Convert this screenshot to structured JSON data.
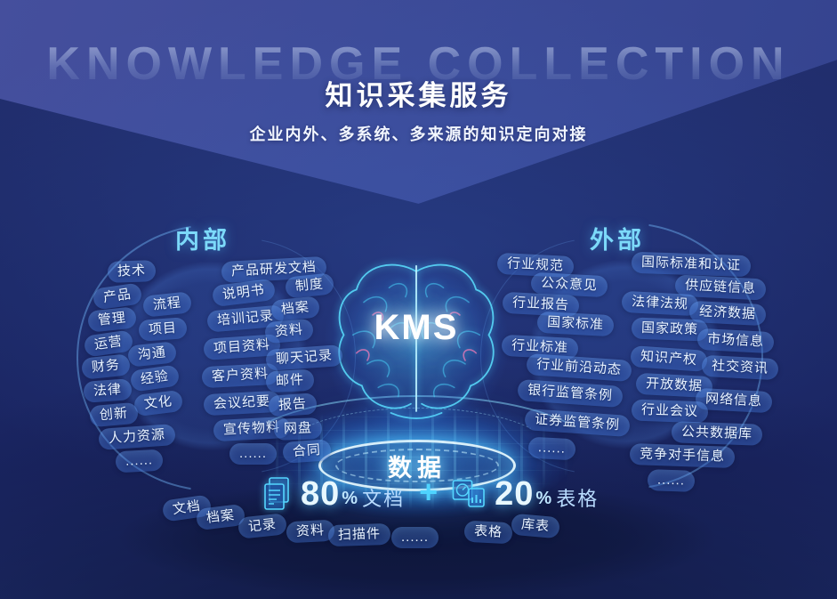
{
  "watermark": "KNOWLEDGE COLLECTION",
  "header": {
    "title": "知识采集服务",
    "subtitle": "企业内外、多系统、多来源的知识定向对接"
  },
  "center": {
    "kms_label": "KMS",
    "data_label": "数据"
  },
  "internal": {
    "label": "内部",
    "col_a": [
      "技术",
      "产品",
      "流程",
      "管理",
      "项目",
      "运营",
      "沟通",
      "财务",
      "经验",
      "法律",
      "文化",
      "创新",
      "人力资源",
      "......"
    ],
    "col_b": [
      "产品研发文档",
      "说明书",
      "制度",
      "培训记录",
      "档案",
      "项目资料",
      "资料",
      "客户资料",
      "聊天记录",
      "会议纪要",
      "邮件",
      "宣传物料",
      "报告",
      "网盘",
      "......",
      "合同"
    ]
  },
  "external": {
    "label": "外部",
    "col_c": [
      "行业规范",
      "公众意见",
      "行业报告",
      "国家标准",
      "行业标准",
      "行业前沿动态",
      "银行监管条例",
      "证券监管条例",
      "......"
    ],
    "col_d": [
      "国际标准和认证",
      "供应链信息",
      "法律法规",
      "经济数据",
      "国家政策",
      "市场信息",
      "知识产权",
      "社交资讯",
      "开放数据",
      "网络信息",
      "行业会议",
      "公共数据库",
      "竞争对手信息",
      "......"
    ]
  },
  "stats": {
    "doc": {
      "value": "80",
      "unit": "%",
      "label": "文档"
    },
    "plus": "+",
    "table": {
      "value": "20",
      "unit": "%",
      "label": "表格"
    }
  },
  "bottom_tags": [
    "文档",
    "档案",
    "记录",
    "资料",
    "扫描件",
    "......",
    "表格",
    "库表"
  ],
  "icons": {
    "doc": "document-stack-icon",
    "table": "table-chart-icon"
  },
  "colors": {
    "accent_cyan": "#4fd4ff",
    "section_label": "#7cd9f9",
    "title_white": "#ffffff",
    "bg_top": "#3b4a97",
    "bg_body": "#1c2866",
    "pill_bg": "#2c56b4",
    "magenta_accent": "#ff7ab8"
  }
}
